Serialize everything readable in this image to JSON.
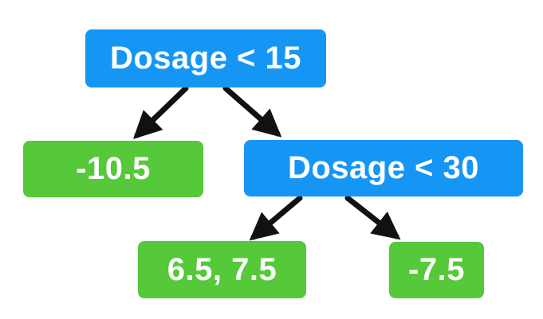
{
  "colors": {
    "decision_node": "#1596f5",
    "leaf_node": "#55c93a",
    "edge": "#111111"
  },
  "tree": {
    "root": {
      "label": "Dosage < 15"
    },
    "left_leaf": {
      "label": "-10.5"
    },
    "right_split": {
      "label": "Dosage < 30"
    },
    "right_left_leaf": {
      "label": "6.5, 7.5"
    },
    "right_right_leaf": {
      "label": "-7.5"
    }
  }
}
